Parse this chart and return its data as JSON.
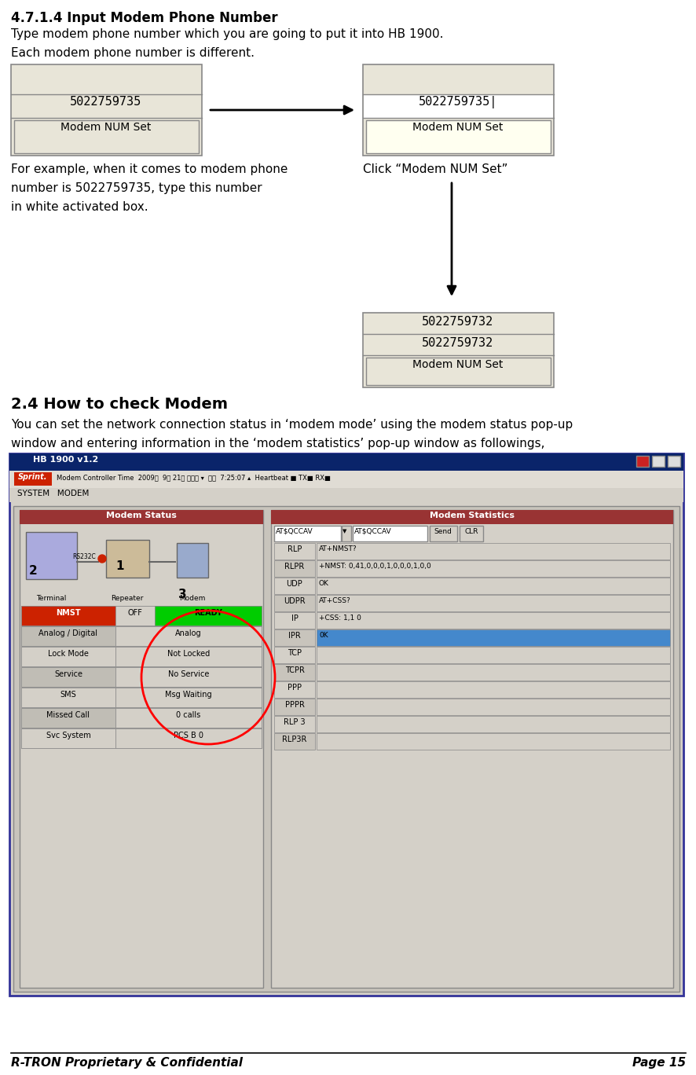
{
  "title_section": "4.7.1.4 Input Modem Phone Number",
  "para1": "Type modem phone number which you are going to put it into HB 1900.",
  "para2": "Each modem phone number is different.",
  "left_box_num": "5022759735",
  "right_box_num": "5022759735|",
  "btn_label": "Modem NUM Set",
  "bottom_box_num1": "5022759732",
  "bottom_box_num2": "5022759732",
  "desc_line1": "For example, when it comes to modem phone",
  "desc_line2": "number is 5022759735, type this number",
  "desc_line3": "in white activated box.",
  "click_label": "Click “Modem NUM Set”",
  "section2_title": "2.4 How to check Modem",
  "section2_para1": "You can set the network connection status in ‘modem mode’ using the modem status pop-up",
  "section2_para2": "window and entering information in the ‘modem statistics’ pop-up window as followings,",
  "footer_left": "R-TRON Proprietary & Confidential",
  "footer_right": "Page 15",
  "bg_color": "#ffffff",
  "box_bg_gray": "#e8e5d8",
  "box_bg_yellow": "#fffff0",
  "btn_bg_left": "#e8e5d8",
  "btn_bg_right": "#fffff0",
  "border_color": "#aaaaaa",
  "text_color": "#000000",
  "win_title_color": "#0a246a",
  "win_bg": "#d4d0c8",
  "panel_title_red": "#993333",
  "stat_blue_row": "#4488cc"
}
